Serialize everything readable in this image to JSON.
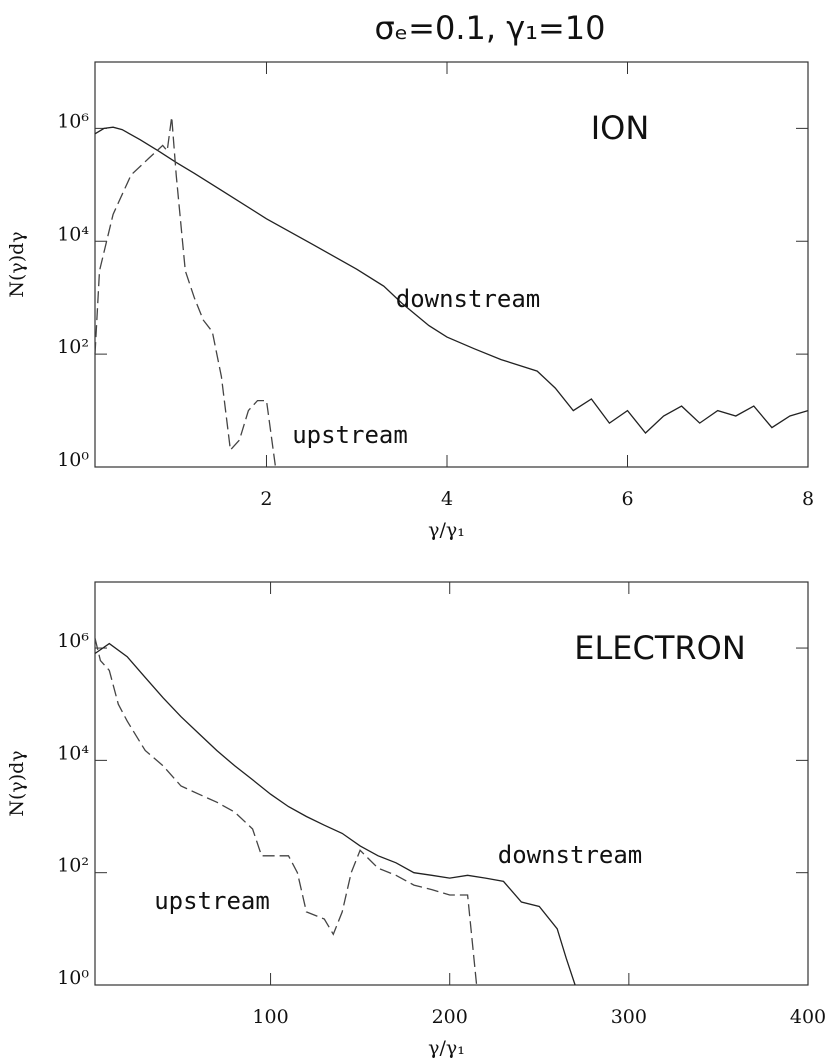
{
  "chart_data": [
    {
      "type": "line",
      "title": "σₑ=0.1,   γ₁=10",
      "label": "ION",
      "x_label": "γ/γ₁",
      "y_label": "N(γ)dγ",
      "log_y": true,
      "xlim": [
        0.1,
        8
      ],
      "xticks": [
        2,
        4,
        6,
        8
      ],
      "ylim": [
        1,
        15000000
      ],
      "yticks": [
        {
          "value": 1,
          "label": "10⁰"
        },
        {
          "value": 100,
          "label": "10²"
        },
        {
          "value": 10000,
          "label": "10⁴"
        },
        {
          "value": 1000000,
          "label": "10⁶"
        }
      ],
      "series": [
        {
          "name": "downstream",
          "color": "#222222",
          "style": "solid",
          "x": [
            0.1,
            0.2,
            0.3,
            0.4,
            0.6,
            0.8,
            1.0,
            1.2,
            1.5,
            2.0,
            2.5,
            3.0,
            3.3,
            3.5,
            3.8,
            4.0,
            4.3,
            4.6,
            5.0,
            5.2,
            5.4,
            5.6,
            5.8,
            6.0,
            6.2,
            6.4,
            6.6,
            6.8,
            7.0,
            7.2,
            7.4,
            7.6,
            7.8,
            8.0
          ],
          "values": [
            800000,
            1000000,
            1050000,
            950000,
            630000,
            400000,
            250000,
            160000,
            80000,
            25000,
            9000,
            3200,
            1600,
            800,
            320,
            200,
            125,
            80,
            50,
            25,
            10,
            16,
            6,
            10,
            4,
            8,
            12,
            6,
            10,
            8,
            12,
            5,
            8,
            10
          ]
        },
        {
          "name": "upstream",
          "color": "#444444",
          "style": "dashed",
          "x": [
            0.1,
            0.15,
            0.3,
            0.5,
            0.7,
            0.85,
            0.9,
            0.95,
            1.0,
            1.1,
            1.2,
            1.3,
            1.4,
            1.5,
            1.6,
            1.7,
            1.8,
            1.9,
            2.0,
            2.1
          ],
          "values": [
            100,
            3000,
            30000,
            150000,
            300000,
            500000,
            400000,
            1600000,
            150000,
            3000,
            1000,
            400,
            250,
            40,
            2,
            3,
            10,
            15,
            15,
            1
          ]
        }
      ]
    },
    {
      "type": "line",
      "label": "ELECTRON",
      "x_label": "γ/γ₁",
      "y_label": "N(γ)dγ",
      "log_y": true,
      "xlim": [
        2,
        400
      ],
      "xticks": [
        100,
        200,
        300,
        400
      ],
      "ylim": [
        1,
        15000000
      ],
      "yticks": [
        {
          "value": 1,
          "label": "10⁰"
        },
        {
          "value": 100,
          "label": "10²"
        },
        {
          "value": 10000,
          "label": "10⁴"
        },
        {
          "value": 1000000,
          "label": "10⁶"
        }
      ],
      "series": [
        {
          "name": "downstream",
          "color": "#222222",
          "style": "solid",
          "x": [
            2,
            10,
            20,
            30,
            40,
            50,
            60,
            70,
            80,
            90,
            100,
            110,
            120,
            130,
            140,
            150,
            160,
            170,
            180,
            190,
            200,
            210,
            220,
            230,
            240,
            250,
            260,
            265,
            270
          ],
          "values": [
            800000,
            1200000,
            700000,
            300000,
            130000,
            60000,
            30000,
            15000,
            8000,
            4500,
            2500,
            1500,
            1000,
            700,
            500,
            300,
            200,
            150,
            100,
            90,
            80,
            90,
            80,
            70,
            30,
            25,
            10,
            3,
            1
          ]
        },
        {
          "name": "upstream",
          "color": "#444444",
          "style": "dashed",
          "x": [
            2,
            5,
            10,
            15,
            20,
            30,
            40,
            50,
            60,
            70,
            80,
            90,
            95,
            100,
            110,
            115,
            120,
            130,
            135,
            140,
            145,
            150,
            160,
            170,
            180,
            190,
            200,
            210,
            215
          ],
          "values": [
            1500000,
            600000,
            400000,
            100000,
            50000,
            15000,
            8000,
            3500,
            2500,
            1800,
            1200,
            600,
            200,
            200,
            200,
            100,
            20,
            15,
            8,
            20,
            100,
            250,
            120,
            90,
            60,
            50,
            40,
            40,
            1
          ]
        }
      ]
    }
  ]
}
